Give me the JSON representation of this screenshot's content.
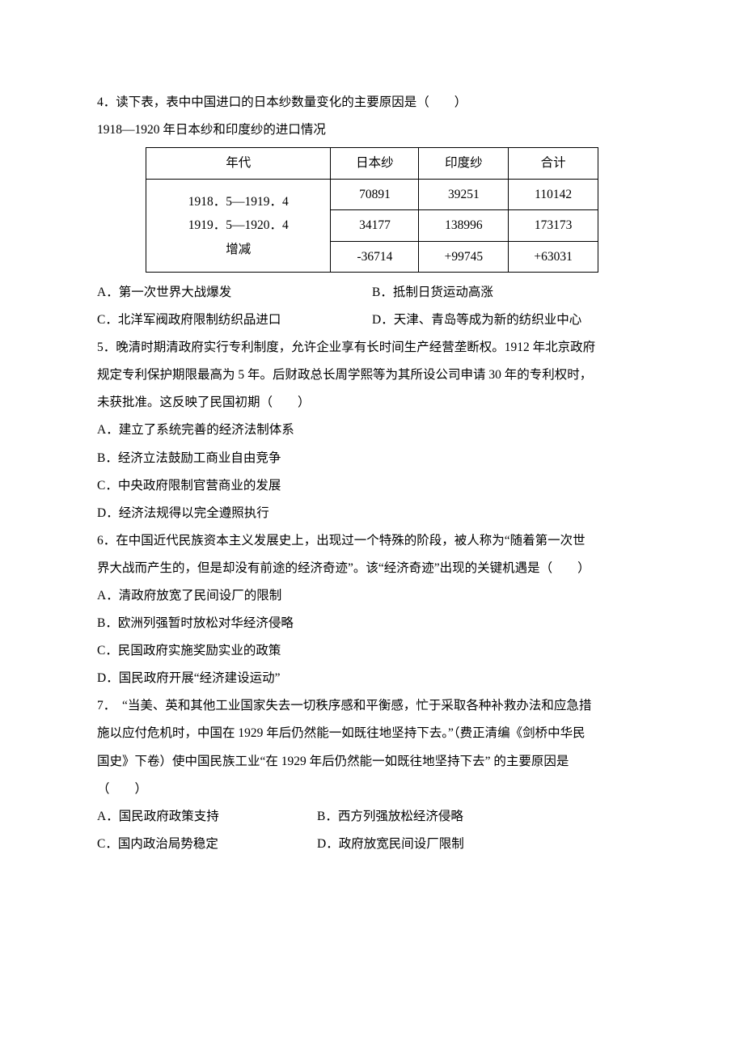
{
  "q4": {
    "stem": "4．读下表，表中中国进口的日本纱数量变化的主要原因是（　　）",
    "caption": "1918—1920 年日本纱和印度纱的进口情况",
    "table": {
      "headers": [
        "年代",
        "日本纱",
        "印度纱",
        "合计"
      ],
      "row_labels": [
        "1918．5—1919．4",
        "1919．5—1920．4",
        "增减"
      ],
      "rows": [
        [
          "70891",
          "39251",
          "110142"
        ],
        [
          "34177",
          "138996",
          "173173"
        ],
        [
          "-36714",
          "+99745",
          "+63031"
        ]
      ]
    },
    "options": {
      "A": "A．第一次世界大战爆发",
      "B": "B．抵制日货运动高涨",
      "C": "C．北洋军阀政府限制纺织品进口",
      "D": "D．天津、青岛等成为新的纺织业中心"
    }
  },
  "q5": {
    "stem1": "5．晚清时期清政府实行专利制度，允许企业享有长时间生产经营垄断权。1912 年北京政府",
    "stem2": "规定专利保护期限最高为 5 年。后财政总长周学熙等为其所设公司申请 30 年的专利权时，",
    "stem3": "未获批准。这反映了民国初期（　　）",
    "options": {
      "A": "A．建立了系统完善的经济法制体系",
      "B": "B．经济立法鼓励工商业自由竞争",
      "C": "C．中央政府限制官营商业的发展",
      "D": "D．经济法规得以完全遵照执行"
    }
  },
  "q6": {
    "stem1": "6．在中国近代民族资本主义发展史上，出现过一个特殊的阶段，被人称为“随着第一次世",
    "stem2": "界大战而产生的，但是却没有前途的经济奇迹”。该“经济奇迹”出现的关键机遇是（　　）",
    "options": {
      "A": "A．清政府放宽了民间设厂的限制",
      "B": "B．欧洲列强暂时放松对华经济侵略",
      "C": "C．民国政府实施奖励实业的政策",
      "D": "D．国民政府开展“经济建设运动”"
    }
  },
  "q7": {
    "stem1": "7．　“当美、英和其他工业国家失去一切秩序感和平衡感，忙于采取各种补救办法和应急措",
    "stem2": "施以应付危机时，中国在 1929 年后仍然能一如既往地坚持下去。”（费正清编《剑桥中华民",
    "stem3": "国史》下卷）使中国民族工业“在 1929 年后仍然能一如既往地坚持下去” 的主要原因是",
    "stem4": "（　　）",
    "options": {
      "A": "A．国民政府政策支持",
      "B": "B．西方列强放松经济侵略",
      "C": "C．国内政治局势稳定",
      "D": "D．政府放宽民间设厂限制"
    }
  }
}
